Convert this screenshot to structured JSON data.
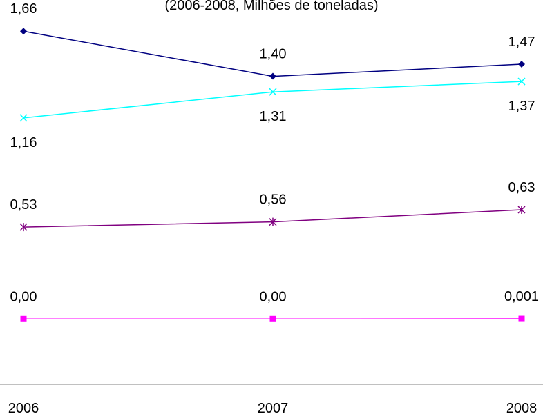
{
  "chart_data": {
    "type": "line",
    "subtitle": "(2006-2008, Milhões de toneladas)",
    "categories": [
      "2006",
      "2007",
      "2008"
    ],
    "series": [
      {
        "values": [
          1.66,
          1.4,
          1.47
        ],
        "labels": [
          "1,66",
          "1,40",
          "1,47"
        ],
        "color": "#000080",
        "marker": "diamond"
      },
      {
        "values": [
          1.16,
          1.31,
          1.37
        ],
        "labels": [
          "1,16",
          "1,31",
          "1,37"
        ],
        "color": "#00ffff",
        "marker": "x"
      },
      {
        "values": [
          0.53,
          0.56,
          0.63
        ],
        "labels": [
          "0,53",
          "0,56",
          "0,63"
        ],
        "color": "#800080",
        "marker": "asterisk"
      },
      {
        "values": [
          0.0,
          0.0,
          0.001
        ],
        "labels": [
          "0,00",
          "0,00",
          "0,001"
        ],
        "color": "#ff00ff",
        "marker": "square"
      }
    ],
    "xlabel": "",
    "ylabel": "",
    "ylim": [
      -0.56,
      1.84
    ],
    "grid": false,
    "legend": "none"
  }
}
